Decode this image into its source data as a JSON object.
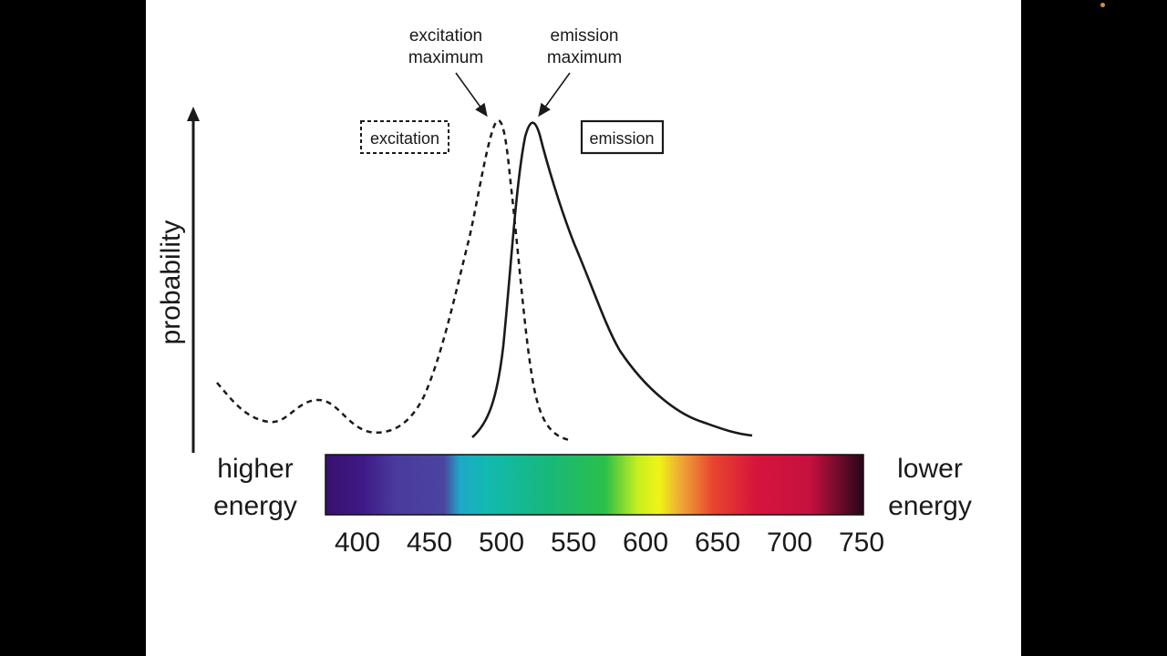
{
  "axis": {
    "ylabel": "probability"
  },
  "annotations": {
    "excitation_max": [
      "excitation",
      "maximum"
    ],
    "emission_max": [
      "emission",
      "maximum"
    ]
  },
  "legend": {
    "excitation": "excitation",
    "emission": "emission"
  },
  "energy": {
    "higher": [
      "higher",
      "energy"
    ],
    "lower": [
      "lower",
      "energy"
    ]
  },
  "spectrum": {
    "ticks": [
      "400",
      "450",
      "500",
      "550",
      "600",
      "650",
      "700",
      "750"
    ],
    "colors": {
      "violet": "#3b0f7a",
      "indigo": "#4a3a9e",
      "cyan": "#12b5b5",
      "green": "#1eb85c",
      "yellow": "#e8f21a",
      "orange": "#ee6a28",
      "red": "#d41441",
      "dark": "#2a0716"
    }
  },
  "curves": {
    "excitation_style": "dashed",
    "emission_style": "solid"
  }
}
